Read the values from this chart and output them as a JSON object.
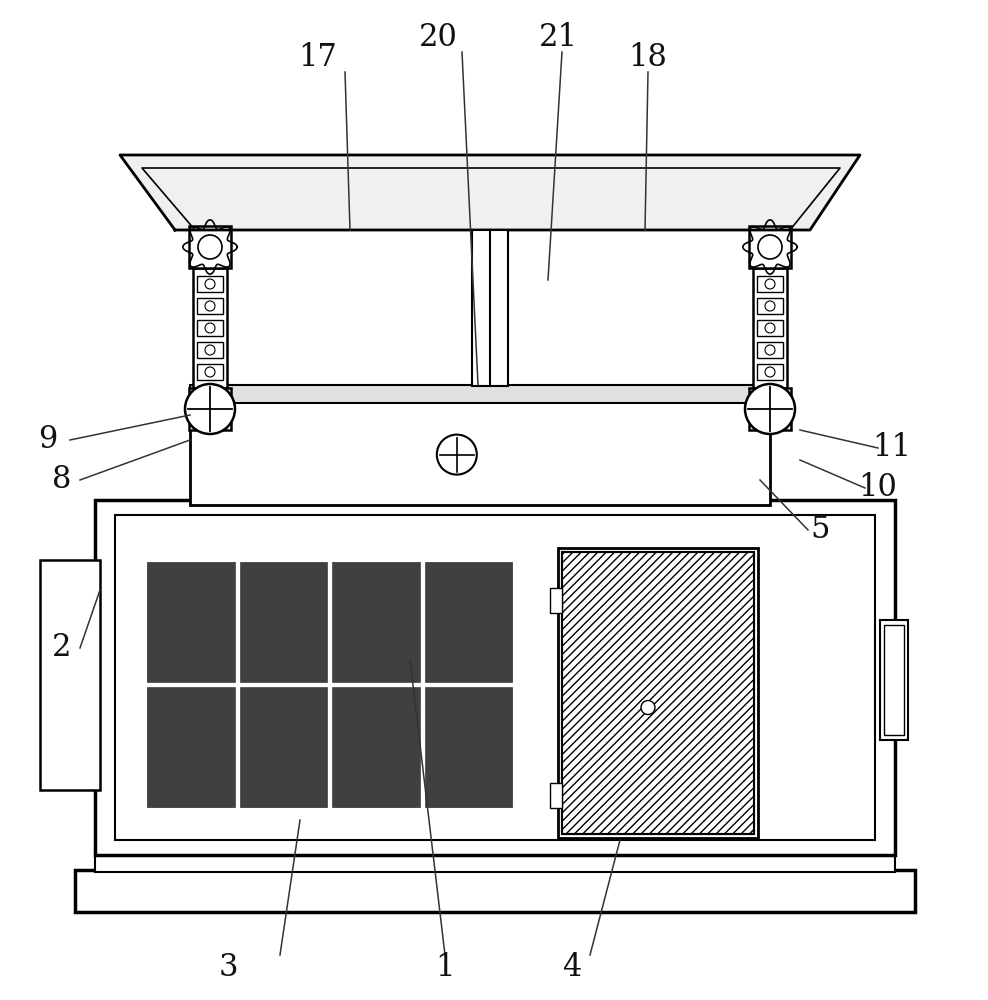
{
  "bg_color": "#ffffff",
  "line_color": "#000000",
  "fig_w": 9.88,
  "fig_h": 10.0,
  "dpi": 100
}
